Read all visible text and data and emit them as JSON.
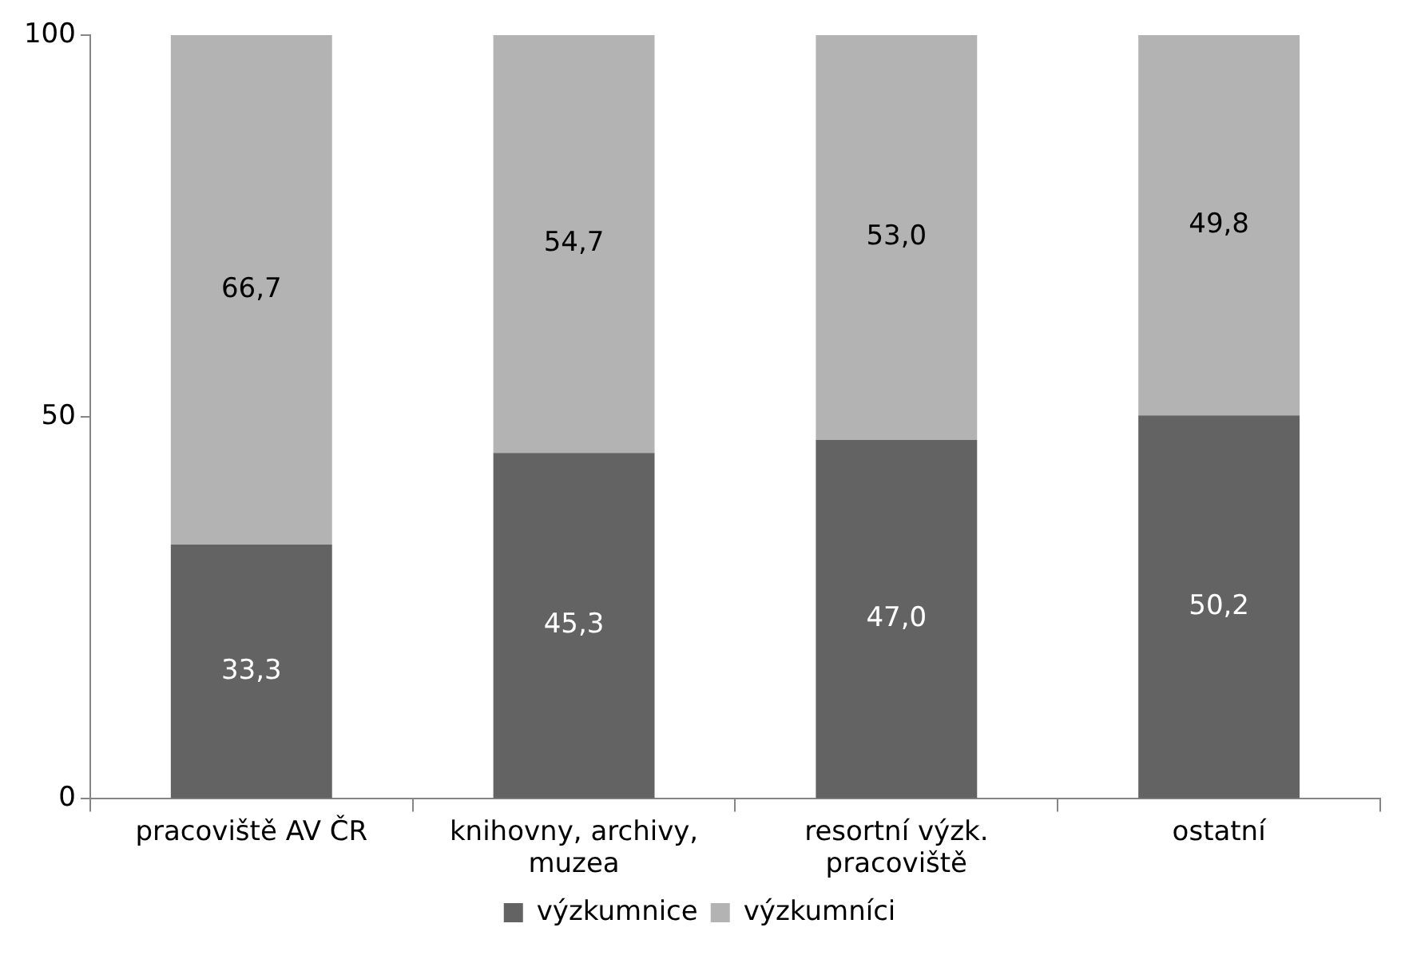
{
  "chart_data": {
    "type": "bar",
    "stacked": true,
    "categories": [
      "pracoviště AV ČR",
      "knihovny, archivy, muzea",
      "resortní výzk. pracoviště",
      "ostatní"
    ],
    "series": [
      {
        "name": "výzkumnice",
        "color": "#636363",
        "values": [
          33.3,
          45.3,
          47.0,
          50.2
        ],
        "value_labels": [
          "33,3",
          "45,3",
          "47,0",
          "50,2"
        ]
      },
      {
        "name": "výzkumníci",
        "color": "#b3b3b3",
        "values": [
          66.7,
          54.7,
          53.0,
          49.8
        ],
        "value_labels": [
          "66,7",
          "54,7",
          "53,0",
          "49,8"
        ]
      }
    ],
    "ylim": [
      0,
      100
    ],
    "yticks": [
      0,
      50,
      100
    ],
    "grid": false,
    "legend": "bottom"
  }
}
